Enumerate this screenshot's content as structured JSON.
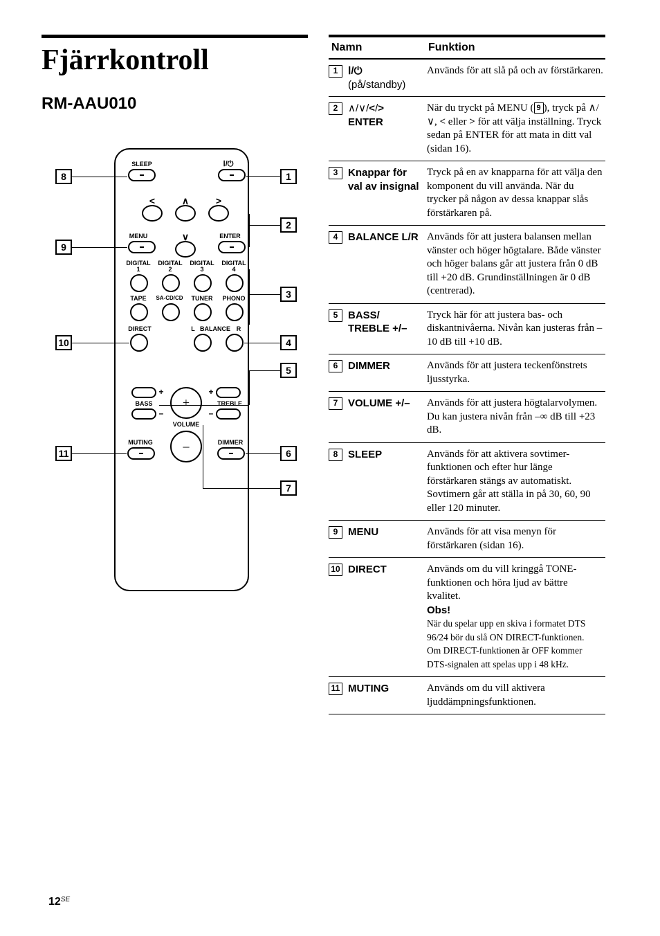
{
  "title": "Fjärrkontroll",
  "subtitle": "RM-AAU010",
  "page_number": "12",
  "page_suffix": "SE",
  "remote": {
    "labels": {
      "sleep": "SLEEP",
      "menu": "MENU",
      "enter": "ENTER",
      "digital1": "DIGITAL\n1",
      "digital2": "DIGITAL\n2",
      "digital3": "DIGITAL\n3",
      "digital4": "DIGITAL\n4",
      "tape": "TAPE",
      "sacd": "SA-CD/CD",
      "tuner": "TUNER",
      "phono": "PHONO",
      "direct": "DIRECT",
      "balance_l": "L",
      "balance": "BALANCE",
      "balance_r": "R",
      "bass": "BASS",
      "treble": "TREBLE",
      "volume": "VOLUME",
      "muting": "MUTING",
      "dimmer": "DIMMER",
      "power_sym": "⏻"
    }
  },
  "table": {
    "headers": {
      "name": "Namn",
      "func": "Funktion"
    },
    "rows": [
      {
        "num": "1",
        "name_html": "<b>⁠</b>",
        "name_raw": "(på/standby)",
        "name_prefix_bold": true,
        "name_lines": [
          "<b style='font-family:Arial'>Ⅰ/⏻</b>",
          "(på/standby)"
        ],
        "func": "Används för att slå på och av förstärkaren."
      },
      {
        "num": "2",
        "name_lines": [
          "∧/∨/<b><</b>/<b>></b>",
          "<b>ENTER</b>"
        ],
        "func": "När du tryckt på MENU (<span class='inline-box'>9</span>), tryck på ∧/∨, <b><</b> eller <b>></b> för att välja inställning. Tryck sedan på ENTER för att mata in ditt val (sidan 16)."
      },
      {
        "num": "3",
        "name_lines": [
          "<b>Knappar för val av insignal</b>"
        ],
        "func": "Tryck på en av knapparna för att välja den komponent du vill använda. När du trycker på någon av dessa knappar slås förstärkaren på."
      },
      {
        "num": "4",
        "name_lines": [
          "<b>BALANCE L/R</b>"
        ],
        "func": "Används för att justera balansen mellan vänster och höger högtalare. Både vänster och höger balans går att justera från 0 dB till +20 dB. Grundinställningen är 0 dB (centrerad)."
      },
      {
        "num": "5",
        "name_lines": [
          "<b>BASS/<br>TREBLE +/–</b>"
        ],
        "func": "Tryck här för att justera bas- och diskantnivåerna. Nivån kan justeras från –10 dB till +10 dB."
      },
      {
        "num": "6",
        "name_lines": [
          "<b>DIMMER</b>"
        ],
        "func": "Används för att justera teckenfönstrets ljusstyrka."
      },
      {
        "num": "7",
        "name_lines": [
          "<b>VOLUME +/–</b>"
        ],
        "func": "Används för att justera högtalarvolymen.<br>Du kan justera nivån från –∞ dB till +23 dB."
      },
      {
        "num": "8",
        "name_lines": [
          "<b>SLEEP</b>"
        ],
        "func": "Används för att aktivera sovtimer-funktionen och efter hur länge förstärkaren stängs av automatiskt.<br>Sovtimern går att ställa in på 30, 60, 90 eller 120 minuter."
      },
      {
        "num": "9",
        "name_lines": [
          "<b>MENU</b>"
        ],
        "func": "Används för att visa menyn för förstärkaren (sidan 16)."
      },
      {
        "num": "10",
        "name_lines": [
          "<b>DIRECT</b>"
        ],
        "func": "Används om du vill kringgå TONE-funktionen och höra ljud av bättre kvalitet.<br><span class='sans-bold'>Obs!</span><br><span class='small'>När du spelar upp en skiva i formatet DTS 96/24 bör du slå ON DIRECT-funktionen.<br>Om DIRECT-funktionen är OFF kommer DTS-signalen att spelas upp i 48 kHz.</span>"
      },
      {
        "num": "11",
        "name_lines": [
          "<b>MUTING</b>"
        ],
        "func": "Används om du vill aktivera ljuddämpningsfunktionen."
      }
    ]
  }
}
